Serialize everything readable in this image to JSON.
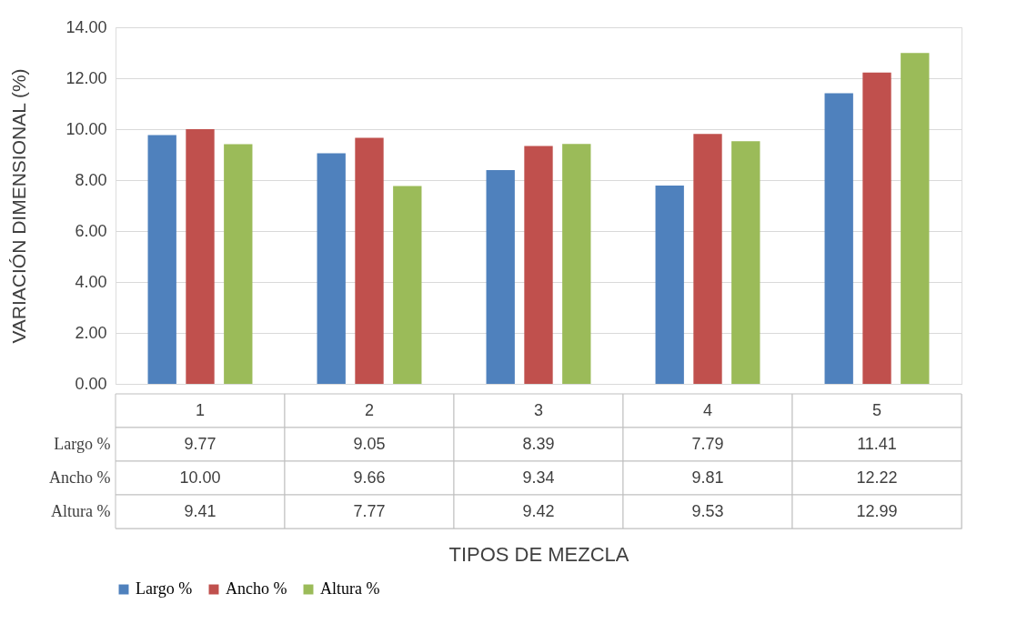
{
  "chart_data": {
    "type": "bar",
    "annotations": [
      "TIPOS DE MEZCLA"
    ],
    "ylabel": "VARIACIÓN DIMENSIONAL (%)",
    "categories": [
      "1",
      "2",
      "3",
      "4",
      "5"
    ],
    "series": [
      {
        "name": "Largo %",
        "color": "#4f81bd",
        "values": [
          9.77,
          9.05,
          8.39,
          7.79,
          11.41
        ],
        "value_labels": [
          "9.77",
          "9.05",
          "8.39",
          "7.79",
          "11.41"
        ]
      },
      {
        "name": "Ancho %",
        "color": "#c0504d",
        "values": [
          10.0,
          9.66,
          9.34,
          9.81,
          12.22
        ],
        "value_labels": [
          "10.00",
          "9.66",
          "9.34",
          "9.81",
          "12.22"
        ]
      },
      {
        "name": "Altura %",
        "color": "#9bbb59",
        "values": [
          9.41,
          7.77,
          9.42,
          9.53,
          12.99
        ],
        "value_labels": [
          "9.41",
          "7.77",
          "9.42",
          "9.53",
          "12.99"
        ]
      }
    ],
    "ylim": [
      0,
      14
    ],
    "yticks": [
      {
        "value": 0,
        "label": "0.00"
      },
      {
        "value": 2,
        "label": "2.00"
      },
      {
        "value": 4,
        "label": "4.00"
      },
      {
        "value": 6,
        "label": "6.00"
      },
      {
        "value": 8,
        "label": "8.00"
      },
      {
        "value": 10,
        "label": "10.00"
      },
      {
        "value": 12,
        "label": "12.00"
      },
      {
        "value": 14,
        "label": "14.00"
      }
    ],
    "grid": "y",
    "legend": "bottom"
  }
}
